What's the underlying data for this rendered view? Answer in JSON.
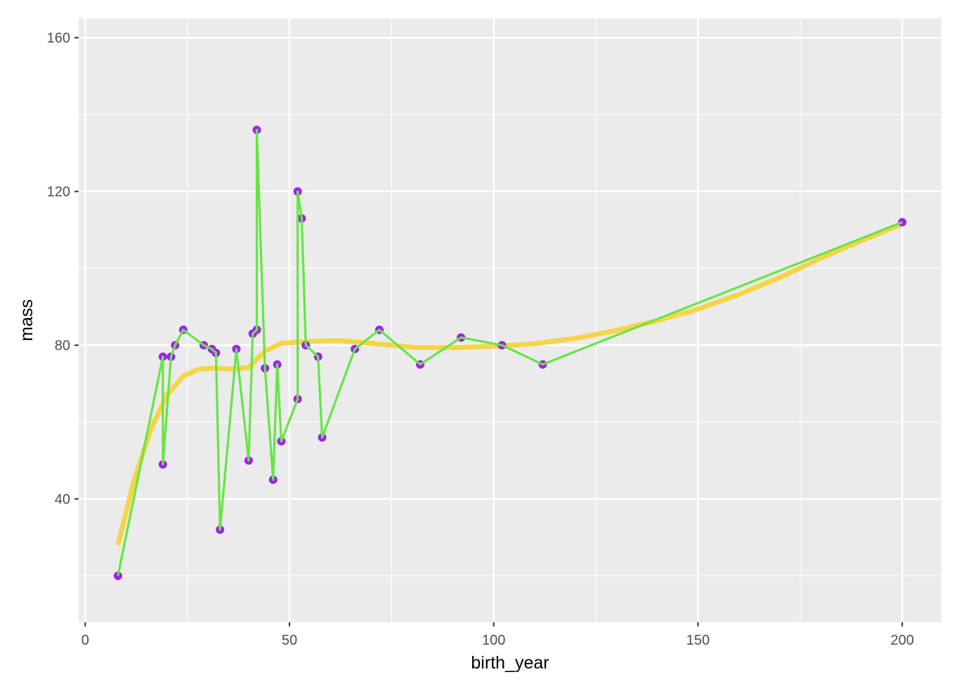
{
  "chart_data": {
    "type": "scatter",
    "title": "",
    "xlabel": "birth_year",
    "ylabel": "mass",
    "xlim": [
      -1.6,
      209.6
    ],
    "ylim": [
      7.94,
      165.06
    ],
    "x_ticks": [
      0,
      50,
      100,
      150,
      200
    ],
    "y_ticks": [
      40,
      80,
      120,
      160
    ],
    "x_minor": [
      25,
      75,
      125,
      175
    ],
    "y_minor": [
      20,
      60,
      100,
      140
    ],
    "grid": true,
    "legend": "none",
    "colors": {
      "panel": "#EBEBEB",
      "grid": "#FFFFFF",
      "points": "#A020F0",
      "line": "#66E544",
      "smooth": "#F5D547",
      "tick_text": "#4D4D4D"
    },
    "series": [
      {
        "type": "scatter",
        "x": [
          8,
          19,
          19,
          21,
          22,
          24,
          29,
          31,
          32,
          33,
          37,
          40,
          41,
          42,
          42,
          44,
          46,
          47,
          48,
          52,
          52,
          53,
          54,
          57,
          58,
          66,
          72,
          82,
          92,
          102,
          112,
          200
        ],
        "y": [
          20,
          77,
          49,
          77,
          80,
          84,
          80,
          79,
          78,
          32,
          79,
          50,
          83,
          84,
          136,
          74,
          45,
          75,
          55,
          66,
          120,
          113,
          80,
          77,
          56,
          79,
          84,
          75,
          82,
          80,
          75,
          112
        ]
      },
      {
        "type": "line",
        "x": [
          8,
          19,
          19,
          21,
          22,
          24,
          29,
          31,
          32,
          33,
          37,
          40,
          41,
          42,
          42,
          44,
          46,
          47,
          48,
          52,
          52,
          53,
          54,
          57,
          58,
          66,
          72,
          82,
          92,
          102,
          112,
          200
        ],
        "y": [
          20,
          77,
          49,
          77,
          80,
          84,
          80,
          79,
          78,
          32,
          79,
          50,
          83,
          84,
          136,
          74,
          45,
          75,
          55,
          66,
          120,
          113,
          80,
          77,
          56,
          79,
          84,
          75,
          82,
          80,
          75,
          112
        ]
      },
      {
        "type": "smooth",
        "x": [
          8,
          12,
          16,
          20,
          24,
          28,
          32,
          36,
          40,
          44,
          48,
          55,
          62,
          70,
          80,
          90,
          100,
          110,
          120,
          130,
          140,
          150,
          160,
          170,
          180,
          190,
          200
        ],
        "y": [
          28,
          45,
          58,
          67,
          72,
          73.8,
          74,
          73.8,
          74.2,
          78.5,
          80.5,
          81,
          81.2,
          80.5,
          79.5,
          79.4,
          79.7,
          80.4,
          81.8,
          83.8,
          86.4,
          89.4,
          93.2,
          97.6,
          102.6,
          107.2,
          111.5
        ]
      }
    ]
  }
}
